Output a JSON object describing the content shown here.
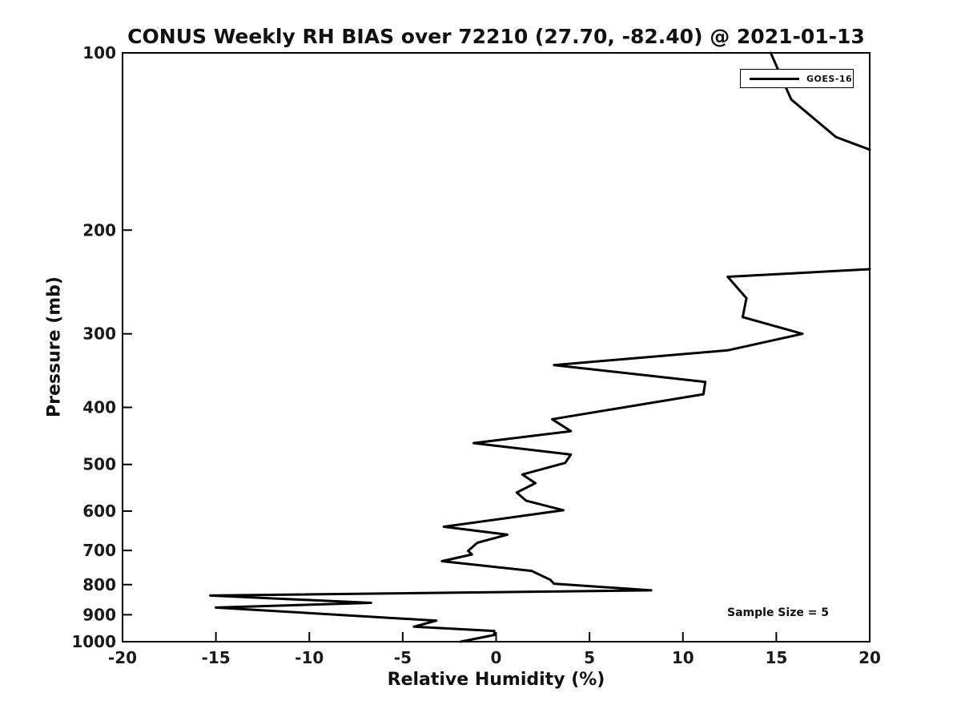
{
  "chart_data": {
    "type": "line",
    "title": "CONUS Weekly RH BIAS over 72210 (27.70, -82.40) @ 2021-01-13",
    "xlabel": "Relative Humidity (%)",
    "ylabel": "Pressure (mb)",
    "xlim": [
      -20,
      20
    ],
    "ylim": [
      100,
      1000
    ],
    "yscale": "log",
    "y_direction": "reversed (pressure increases downward)",
    "grid": false,
    "xticks": [
      -20,
      -15,
      -10,
      -5,
      0,
      5,
      10,
      15,
      20
    ],
    "yticks": [
      100,
      200,
      300,
      400,
      500,
      600,
      700,
      800,
      900,
      1000
    ],
    "legend": {
      "position": "upper right",
      "entries": [
        {
          "label": "GOES-16",
          "color": "#000000",
          "line_width": 3
        }
      ]
    },
    "annotation": {
      "text": "Sample Size = 5",
      "position": "lower right inside axes"
    },
    "series": [
      {
        "name": "GOES-16",
        "color": "#000000",
        "line_width": 3,
        "note": "Points are [RH bias %, pressure mb]. Line exceeds RH=20 (clipped at right axis) between ~146 mb and ~233 mb, hence two visible segments.",
        "segments": [
          [
            [
              14.7,
              100
            ],
            [
              15.8,
              120
            ],
            [
              18.2,
              139
            ],
            [
              20.0,
              146
            ]
          ],
          [
            [
              20.0,
              233
            ],
            [
              12.4,
              240
            ],
            [
              13.4,
              261
            ],
            [
              13.2,
              281
            ],
            [
              16.4,
              300
            ],
            [
              12.4,
              320
            ],
            [
              3.1,
              339
            ],
            [
              11.2,
              362
            ],
            [
              11.1,
              380
            ],
            [
              3.0,
              419
            ],
            [
              4.0,
              439
            ],
            [
              -1.2,
              460
            ],
            [
              4.0,
              481
            ],
            [
              3.7,
              497
            ],
            [
              1.4,
              520
            ],
            [
              2.1,
              538
            ],
            [
              1.1,
              558
            ],
            [
              1.6,
              576
            ],
            [
              3.6,
              598
            ],
            [
              -2.8,
              638
            ],
            [
              0.6,
              658
            ],
            [
              -1.0,
              679
            ],
            [
              -1.5,
              701
            ],
            [
              -1.3,
              711
            ],
            [
              -2.9,
              730
            ],
            [
              1.9,
              758
            ],
            [
              2.9,
              785
            ],
            [
              3.1,
              797
            ],
            [
              8.3,
              818
            ],
            [
              -15.3,
              835
            ],
            [
              -6.7,
              859
            ],
            [
              -15.0,
              875
            ],
            [
              -3.2,
              921
            ],
            [
              -4.4,
              943
            ],
            [
              -0.1,
              959
            ],
            [
              -0.1,
              974
            ],
            [
              -1.9,
              1000
            ]
          ]
        ]
      }
    ]
  }
}
